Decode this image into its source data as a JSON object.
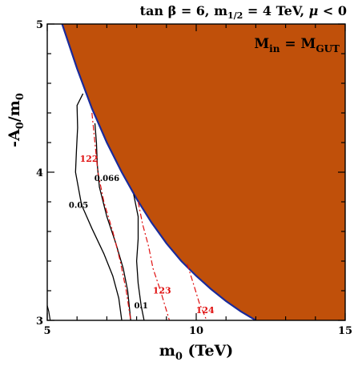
{
  "chart_data": {
    "type": "line",
    "title": "tan β  = 6, m1/2 = 4 TeV, μ < 0",
    "title_parts": {
      "prefix": "tan β  = 6, m",
      "sub": "1/2",
      "mid": " = 4 TeV, ",
      "mu": "μ",
      "suffix": " < 0"
    },
    "xlabel": "m0 (TeV)",
    "xlabel_parts": {
      "base": "m",
      "sub": "0",
      "rest": " (TeV)"
    },
    "ylabel": "-A0/m0",
    "ylabel_parts": {
      "a": "-A",
      "sub1": "0",
      "b": "/m",
      "sub2": "0"
    },
    "xlim": [
      5,
      15
    ],
    "ylim": [
      3,
      5
    ],
    "xticks": [
      5,
      10,
      15
    ],
    "xtick_labels": [
      "5",
      "10",
      "15"
    ],
    "yticks": [
      3,
      4,
      5
    ],
    "ytick_labels": [
      "3",
      "4",
      "5"
    ],
    "region_label": {
      "base": "M",
      "sub1": "in",
      "eq": " = M",
      "sub2": "GUT"
    },
    "excluded_region": {
      "color": "#c0500a",
      "boundary_color": "#1a2a9a",
      "boundary": [
        [
          5.5,
          5.0
        ],
        [
          6.0,
          4.7
        ],
        [
          6.5,
          4.43
        ],
        [
          7.0,
          4.2
        ],
        [
          7.5,
          4.0
        ],
        [
          8.0,
          3.82
        ],
        [
          8.5,
          3.66
        ],
        [
          9.0,
          3.52
        ],
        [
          9.5,
          3.4
        ],
        [
          10.0,
          3.3
        ],
        [
          10.5,
          3.21
        ],
        [
          11.0,
          3.13
        ],
        [
          11.5,
          3.06
        ],
        [
          12.0,
          3.0
        ]
      ]
    },
    "series": [
      {
        "label": "0.05",
        "kind": "solid",
        "color": "#000000",
        "points": [
          [
            6.2,
            4.53
          ],
          [
            6.0,
            4.45
          ],
          [
            6.02,
            4.3
          ],
          [
            5.98,
            4.15
          ],
          [
            5.95,
            4.0
          ],
          [
            6.15,
            3.78
          ],
          [
            6.5,
            3.62
          ],
          [
            6.9,
            3.45
          ],
          [
            7.2,
            3.3
          ],
          [
            7.4,
            3.15
          ],
          [
            7.5,
            3.0
          ]
        ]
      },
      {
        "label": "0.066",
        "kind": "solid",
        "color": "#000000",
        "points": [
          [
            6.6,
            4.33
          ],
          [
            6.65,
            4.2
          ],
          [
            6.68,
            4.05
          ],
          [
            6.75,
            3.9
          ],
          [
            7.0,
            3.7
          ],
          [
            7.3,
            3.52
          ],
          [
            7.55,
            3.35
          ],
          [
            7.7,
            3.2
          ],
          [
            7.8,
            3.0
          ]
        ]
      },
      {
        "label": "0.1",
        "kind": "solid",
        "color": "#000000",
        "points": [
          [
            7.9,
            3.85
          ],
          [
            8.05,
            3.7
          ],
          [
            8.05,
            3.55
          ],
          [
            8.0,
            3.4
          ],
          [
            8.05,
            3.25
          ],
          [
            8.15,
            3.1
          ],
          [
            8.25,
            3.0
          ]
        ]
      },
      {
        "label": "122",
        "kind": "dashdot",
        "color": "#e01010",
        "points": [
          [
            6.5,
            4.4
          ],
          [
            6.6,
            4.2
          ],
          [
            6.7,
            4.0
          ],
          [
            6.9,
            3.8
          ],
          [
            7.2,
            3.6
          ],
          [
            7.45,
            3.4
          ],
          [
            7.65,
            3.2
          ],
          [
            7.8,
            3.0
          ]
        ]
      },
      {
        "label": "123",
        "kind": "dashdot",
        "color": "#e01010",
        "points": [
          [
            8.05,
            3.8
          ],
          [
            8.2,
            3.65
          ],
          [
            8.4,
            3.5
          ],
          [
            8.55,
            3.35
          ],
          [
            8.8,
            3.2
          ],
          [
            9.1,
            3.0
          ]
        ]
      },
      {
        "label": "124",
        "kind": "dashdot",
        "color": "#e01010",
        "points": [
          [
            9.7,
            3.38
          ],
          [
            9.9,
            3.25
          ],
          [
            10.1,
            3.12
          ],
          [
            10.35,
            3.0
          ]
        ]
      }
    ],
    "corner_curve": [
      [
        5.0,
        3.1
      ],
      [
        5.05,
        3.06
      ],
      [
        5.1,
        3.0
      ]
    ],
    "contour_labels": [
      {
        "text": "0.05",
        "x": 6.05,
        "y": 3.76,
        "color": "#000000"
      },
      {
        "text": "0.066",
        "x": 7.0,
        "y": 3.94,
        "color": "#000000"
      },
      {
        "text": "0.1",
        "x": 8.15,
        "y": 3.08,
        "color": "#000000"
      },
      {
        "text": "122",
        "x": 6.4,
        "y": 4.07,
        "color": "#e01010"
      },
      {
        "text": "123",
        "x": 8.85,
        "y": 3.18,
        "color": "#e01010"
      },
      {
        "text": "124",
        "x": 10.3,
        "y": 3.05,
        "color": "#e01010"
      }
    ]
  }
}
